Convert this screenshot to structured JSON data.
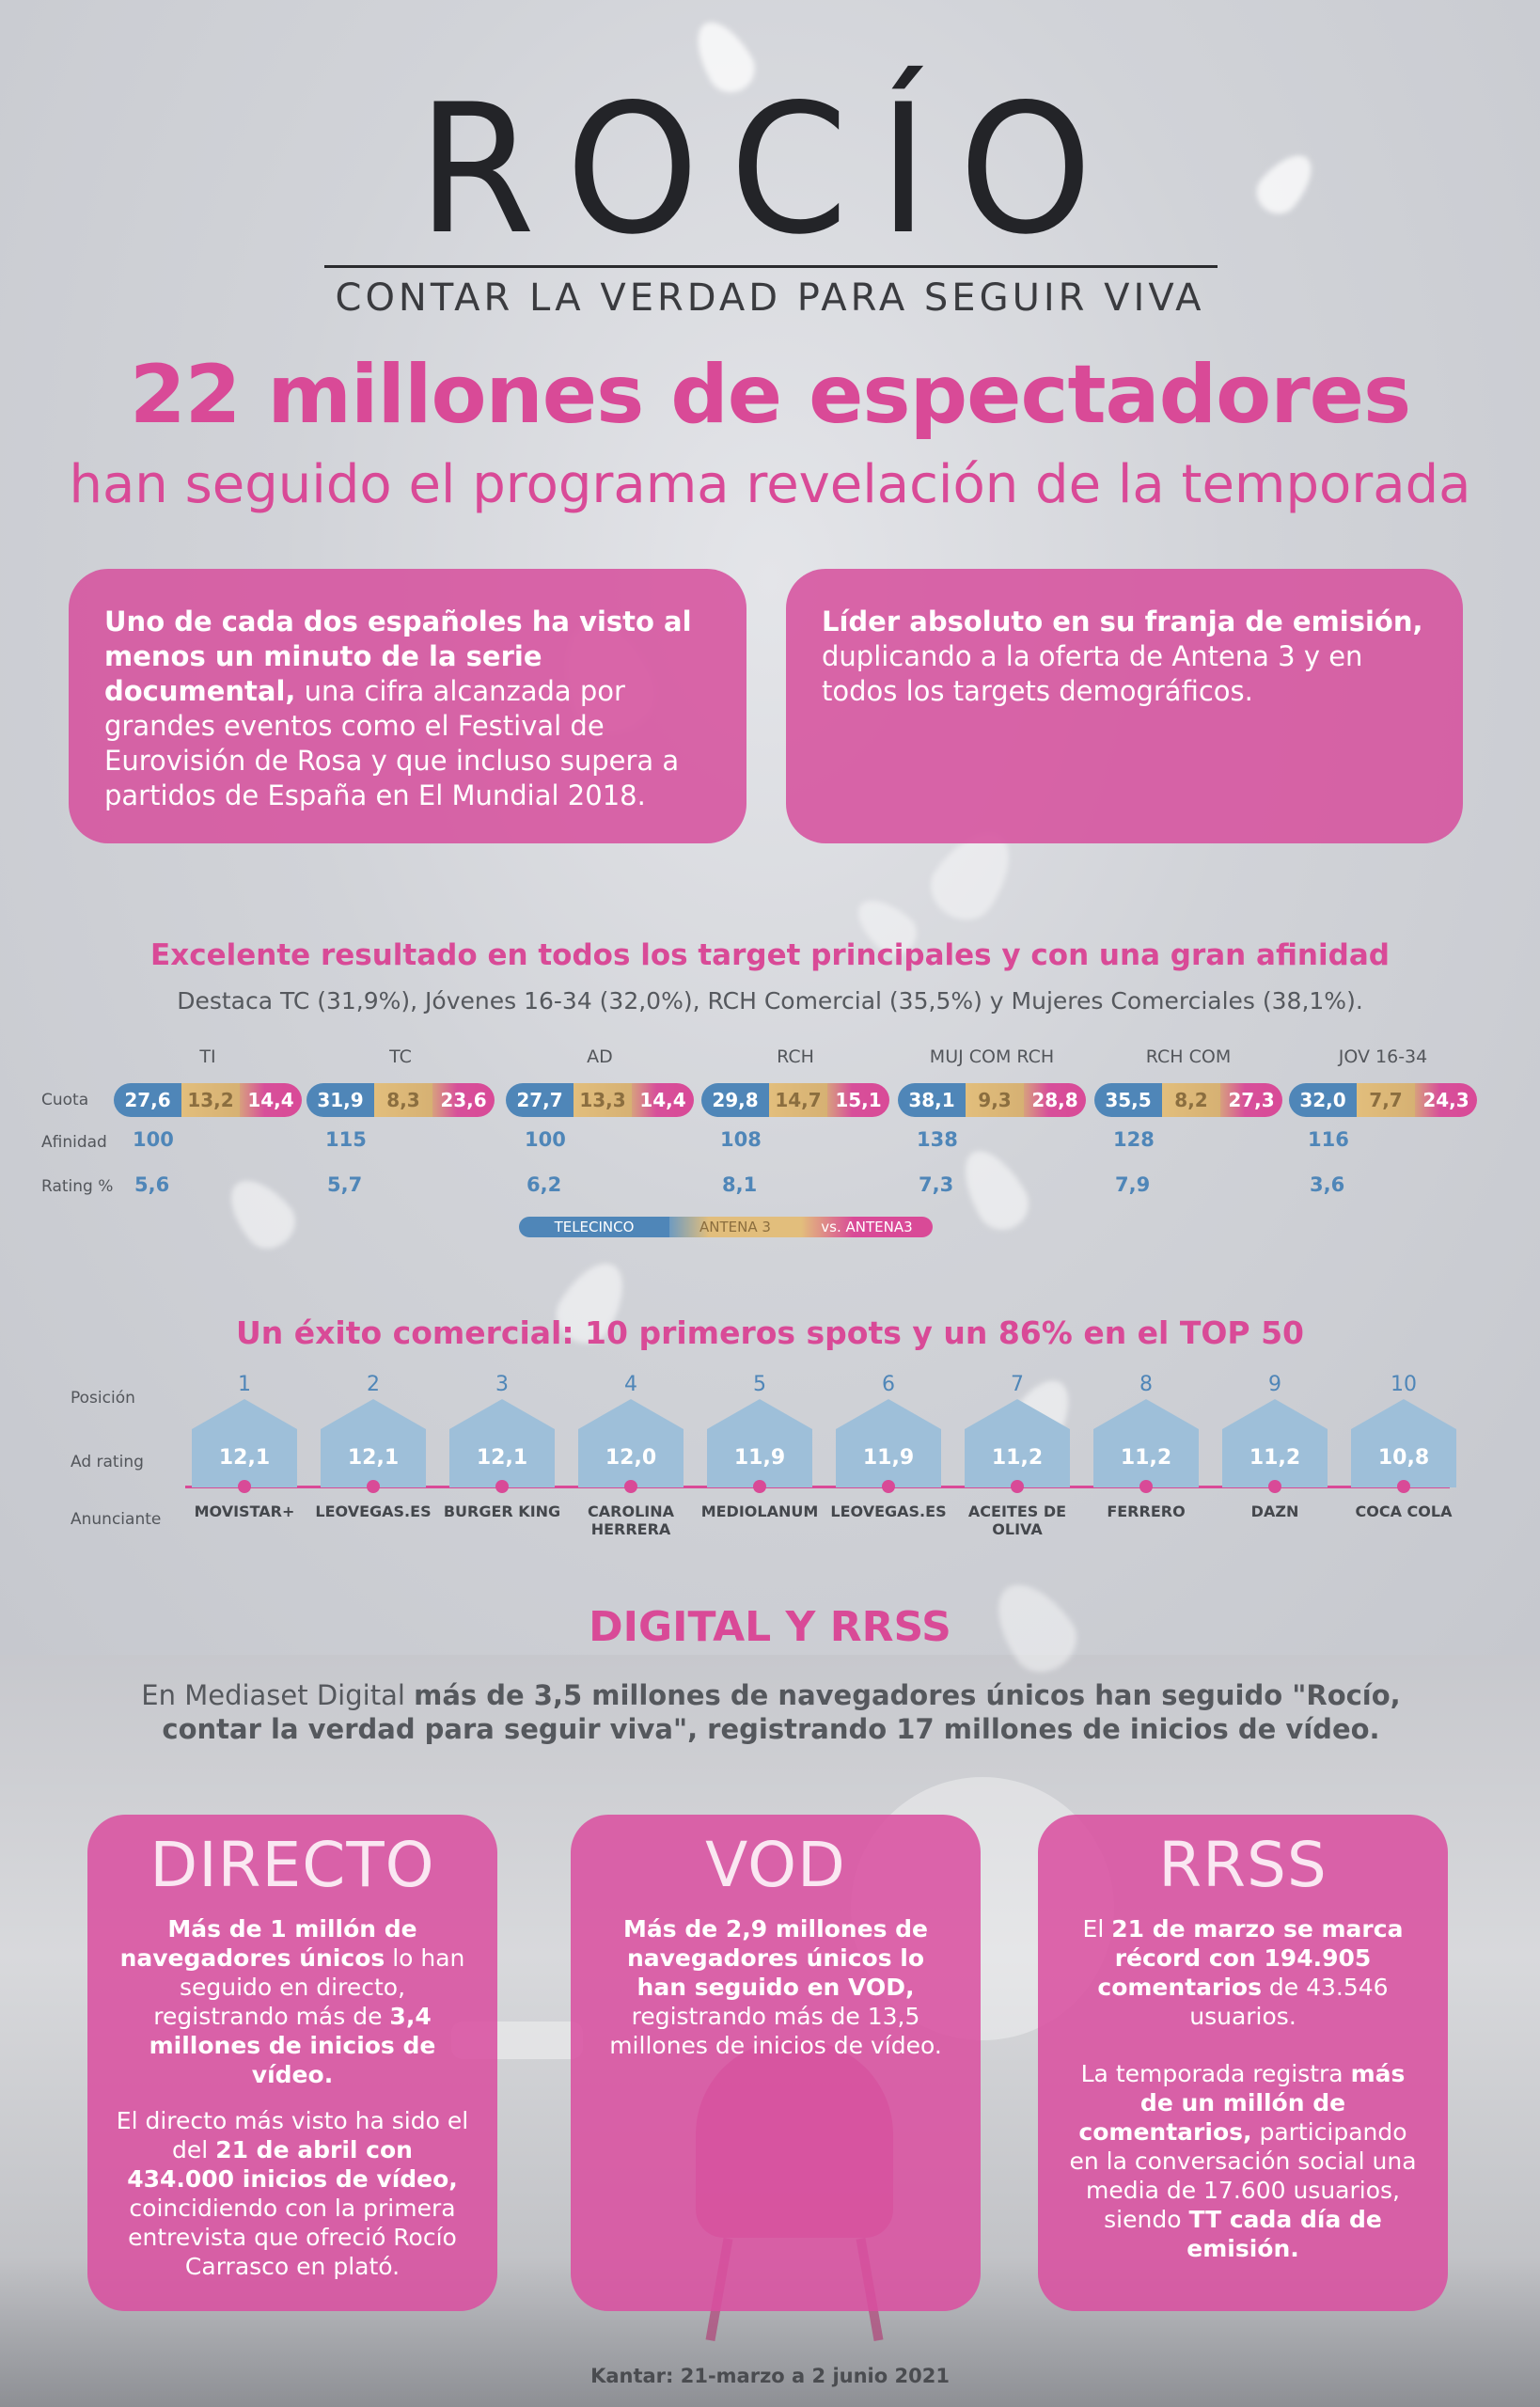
{
  "brand": {
    "title": "ROCÍO",
    "tagline": "CONTAR LA VERDAD PARA SEGUIR VIVA"
  },
  "headline": "22 millones de espectadores",
  "subheadline": "han seguido el programa revelación de la temporada",
  "box_left": {
    "bold": "Uno de cada dos españoles ha visto al menos un minuto de la serie documental,",
    "text": " una cifra alcanzada por grandes eventos como el Festival de Eurovisión de Rosa  y que incluso supera a partidos de España en El Mundial 2018."
  },
  "box_right": {
    "bold": "Líder absoluto en su franja de emisión,",
    "text": " duplicando a la oferta de Antena 3 y en todos los targets demográficos."
  },
  "targets_section": {
    "title": "Excelente resultado en todos los target principales y con una gran afinidad",
    "subtitle": "Destaca TC (31,9%), Jóvenes 16-34 (32,0%), RCH Comercial (35,5%) y Mujeres Comerciales (38,1%).",
    "row_labels": {
      "cuota": "Cuota",
      "afinidad": "Afinidad",
      "rating": "Rating %"
    },
    "targets": [
      {
        "name": "TI",
        "tc": "27,6",
        "a3": "13,2",
        "vs": "14,4",
        "afinidad": "100",
        "rating": "5,6"
      },
      {
        "name": "TC",
        "tc": "31,9",
        "a3": "8,3",
        "vs": "23,6",
        "afinidad": "115",
        "rating": "5,7"
      },
      {
        "name": "AD",
        "tc": "27,7",
        "a3": "13,3",
        "vs": "14,4",
        "afinidad": "100",
        "rating": "6,2"
      },
      {
        "name": "RCH",
        "tc": "29,8",
        "a3": "14,7",
        "vs": "15,1",
        "afinidad": "108",
        "rating": "8,1"
      },
      {
        "name": "MUJ COM RCH",
        "tc": "38,1",
        "a3": "9,3",
        "vs": "28,8",
        "afinidad": "138",
        "rating": "7,3"
      },
      {
        "name": "RCH COM",
        "tc": "35,5",
        "a3": "8,2",
        "vs": "27,3",
        "afinidad": "128",
        "rating": "7,9"
      },
      {
        "name": "JOV 16-34",
        "tc": "32,0",
        "a3": "7,7",
        "vs": "24,3",
        "afinidad": "116",
        "rating": "3,6"
      }
    ],
    "legend": {
      "tc": "TELECINCO",
      "a3": "ANTENA 3",
      "vs": "vs. ANTENA3"
    },
    "colors": {
      "telecinco": "#4f86b8",
      "antena3": "#e2be7c",
      "vs": "#d94a97"
    }
  },
  "spots_section": {
    "title": "Un éxito comercial: 10 primeros spots y un 86% en el TOP 50",
    "row_labels": {
      "posicion": "Posición",
      "ad_rating": "Ad rating",
      "anunciante": "Anunciante"
    },
    "spots": [
      {
        "pos": "1",
        "rating": "12,1",
        "advertiser": "MOVISTAR+"
      },
      {
        "pos": "2",
        "rating": "12,1",
        "advertiser": "LEOVEGAS.ES"
      },
      {
        "pos": "3",
        "rating": "12,1",
        "advertiser": "BURGER KING"
      },
      {
        "pos": "4",
        "rating": "12,0",
        "advertiser": "CAROLINA HERRERA"
      },
      {
        "pos": "5",
        "rating": "11,9",
        "advertiser": "MEDIOLANUM"
      },
      {
        "pos": "6",
        "rating": "11,9",
        "advertiser": "LEOVEGAS.ES"
      },
      {
        "pos": "7",
        "rating": "11,2",
        "advertiser": "ACEITES DE OLIVA"
      },
      {
        "pos": "8",
        "rating": "11,2",
        "advertiser": "FERRERO"
      },
      {
        "pos": "9",
        "rating": "11,2",
        "advertiser": "DAZN"
      },
      {
        "pos": "10",
        "rating": "10,8",
        "advertiser": "COCA COLA"
      }
    ]
  },
  "digital_section": {
    "title": "DIGITAL Y RRSS",
    "intro_prefix": "En Mediaset Digital ",
    "intro_bold": "más de 3,5 millones de navegadores únicos han seguido \"Rocío, contar la verdad para seguir viva\", registrando 17 millones de inicios de vídeo."
  },
  "cards": {
    "directo": {
      "title": "DIRECTO",
      "p1_b1": "Más de 1 millón de navegadores únicos",
      "p1_t1": " lo han seguido en directo, registrando más de ",
      "p1_b2": "3,4 millones de inicios de vídeo.",
      "p2_t1": "El directo más visto ha sido el del ",
      "p2_b1": "21 de abril con 434.000 inicios de vídeo,",
      "p2_t2": " coincidiendo con la primera entrevista que ofreció Rocío Carrasco en plató."
    },
    "vod": {
      "title": "VOD",
      "p1_b1": "Más de 2,9 millones de navegadores únicos lo han seguido en VOD,",
      "p1_t1": " registrando más de 13,5 millones de inicios de vídeo."
    },
    "rrss": {
      "title": "RRSS",
      "p1_t1": "El ",
      "p1_b1": "21 de marzo se marca récord con 194.905 comentarios",
      "p1_t2": " de 43.546 usuarios.",
      "p2_t1": "La temporada registra ",
      "p2_b1": "más de un millón de comentarios,",
      "p2_t2": " participando en la conversación social una media de 17.600 usuarios, siendo ",
      "p2_b2": "TT cada día de emisión."
    }
  },
  "footer": "Kantar: 21-marzo a 2 junio 2021"
}
